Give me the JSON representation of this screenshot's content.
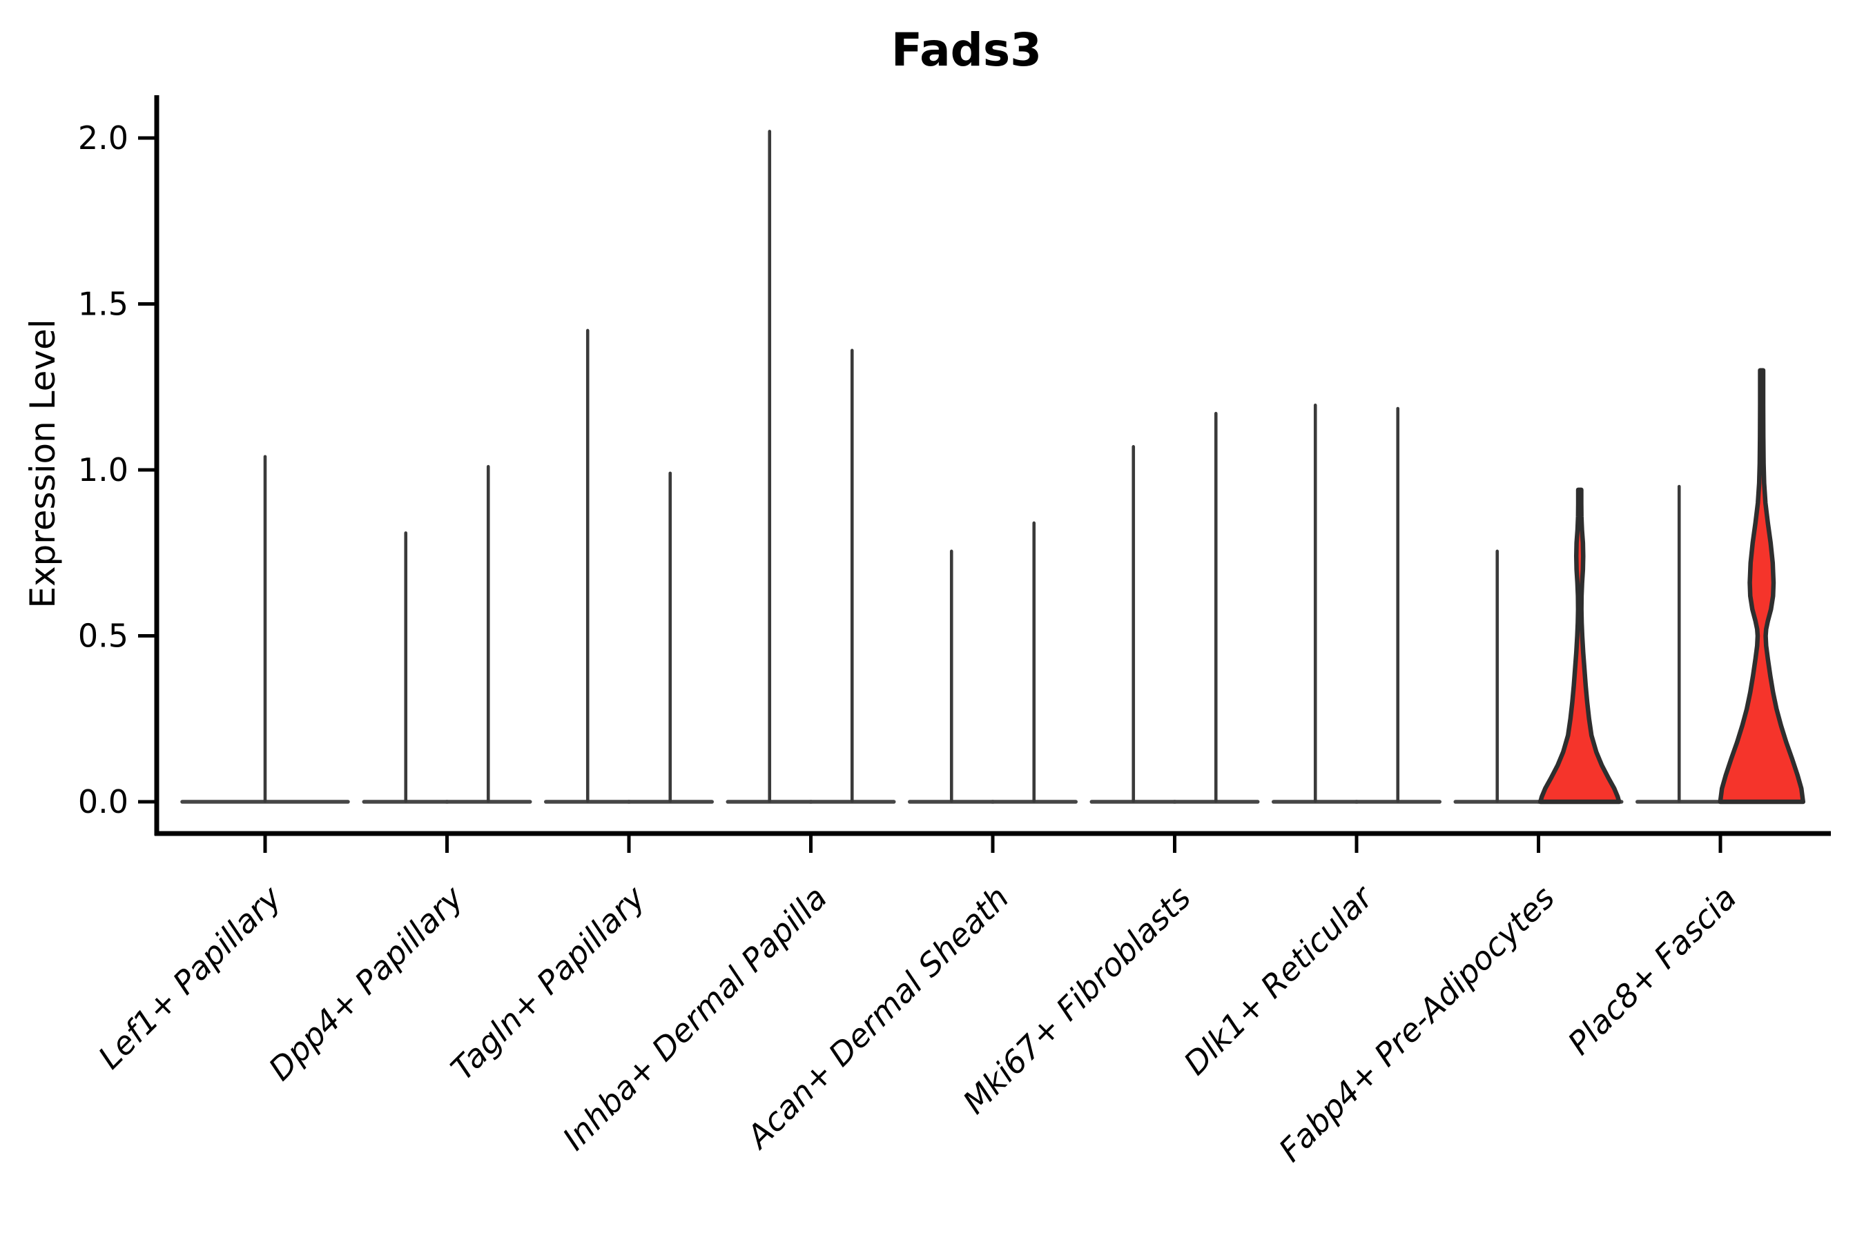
{
  "title": "Fads3",
  "ylabel": "Expression Level",
  "colors": {
    "violin_fill": "#f5342b",
    "violin_stroke": "#2e2e2e",
    "spike_line": "#3a3a3a",
    "base_line": "#464646",
    "axis": "#000000",
    "background": "#ffffff"
  },
  "chart_data": {
    "type": "violin",
    "title": "Fads3",
    "xlabel": "",
    "ylabel": "Expression Level",
    "ylim": [
      0,
      2.05
    ],
    "y_ticks": [
      "0.0",
      "0.5",
      "1.0",
      "1.5",
      "2.0"
    ],
    "grid": false,
    "legend": "none",
    "x_tick_rotation_deg": 45,
    "x_tick_style": "italic",
    "categories": [
      {
        "label": "Lef1+ Papillary",
        "violins": [
          {
            "pos": 0,
            "max": 1.04,
            "kind": "spike"
          }
        ]
      },
      {
        "label": "Dpp4+ Papillary",
        "violins": [
          {
            "pos": -1,
            "max": 0.81,
            "kind": "spike"
          },
          {
            "pos": 1,
            "max": 1.01,
            "kind": "spike"
          }
        ]
      },
      {
        "label": "Tagln+ Papillary",
        "violins": [
          {
            "pos": -1,
            "max": 1.42,
            "kind": "spike"
          },
          {
            "pos": 1,
            "max": 0.99,
            "kind": "spike"
          }
        ]
      },
      {
        "label": "Inhba+ Dermal Papilla",
        "violins": [
          {
            "pos": -1,
            "max": 2.02,
            "kind": "spike"
          },
          {
            "pos": 1,
            "max": 1.36,
            "kind": "spike"
          }
        ]
      },
      {
        "label": "Acan+ Dermal Sheath",
        "violins": [
          {
            "pos": -1,
            "max": 0.755,
            "kind": "spike"
          },
          {
            "pos": 1,
            "max": 0.84,
            "kind": "spike"
          }
        ]
      },
      {
        "label": "Mki67+ Fibroblasts",
        "violins": [
          {
            "pos": -1,
            "max": 1.07,
            "kind": "spike"
          },
          {
            "pos": 1,
            "max": 1.17,
            "kind": "spike"
          }
        ]
      },
      {
        "label": "Dlk1+ Reticular",
        "violins": [
          {
            "pos": -1,
            "max": 1.195,
            "kind": "spike"
          },
          {
            "pos": 1,
            "max": 1.185,
            "kind": "spike"
          }
        ]
      },
      {
        "label": "Fabp4+ Pre-Adipocytes",
        "violins": [
          {
            "pos": -1,
            "max": 0.755,
            "kind": "spike"
          },
          {
            "pos": 1,
            "max": 0.94,
            "kind": "filled",
            "profile": [
              [
                0.94,
                2.2
              ],
              [
                0.9,
                2.2
              ],
              [
                0.86,
                2.4
              ],
              [
                0.82,
                3.2
              ],
              [
                0.78,
                4.6
              ],
              [
                0.74,
                5.0
              ],
              [
                0.7,
                4.6
              ],
              [
                0.66,
                3.4
              ],
              [
                0.62,
                2.6
              ],
              [
                0.58,
                2.4
              ],
              [
                0.54,
                2.8
              ],
              [
                0.5,
                3.6
              ],
              [
                0.45,
                5.0
              ],
              [
                0.4,
                6.8
              ],
              [
                0.35,
                8.6
              ],
              [
                0.3,
                10.8
              ],
              [
                0.25,
                13.5
              ],
              [
                0.2,
                17.0
              ],
              [
                0.15,
                24.0
              ],
              [
                0.11,
                32.0
              ],
              [
                0.07,
                42.0
              ],
              [
                0.04,
                50.0
              ],
              [
                0.015,
                55.0
              ],
              [
                0.0,
                57.0
              ]
            ]
          }
        ]
      },
      {
        "label": "Plac8+ Fascia",
        "violins": [
          {
            "pos": -1,
            "max": 0.95,
            "kind": "spike"
          },
          {
            "pos": 1,
            "max": 1.3,
            "kind": "filled",
            "profile": [
              [
                1.3,
                2.2
              ],
              [
                1.2,
                2.2
              ],
              [
                1.1,
                2.4
              ],
              [
                1.02,
                2.8
              ],
              [
                0.96,
                3.6
              ],
              [
                0.9,
                5.5
              ],
              [
                0.84,
                9.0
              ],
              [
                0.78,
                13.0
              ],
              [
                0.72,
                16.0
              ],
              [
                0.66,
                17.2
              ],
              [
                0.62,
                16.5
              ],
              [
                0.58,
                13.5
              ],
              [
                0.545,
                9.0
              ],
              [
                0.52,
                6.5
              ],
              [
                0.5,
                5.8
              ],
              [
                0.47,
                6.5
              ],
              [
                0.43,
                9.0
              ],
              [
                0.38,
                12.5
              ],
              [
                0.33,
                16.5
              ],
              [
                0.28,
                21.5
              ],
              [
                0.23,
                28.0
              ],
              [
                0.18,
                35.5
              ],
              [
                0.13,
                44.0
              ],
              [
                0.08,
                52.0
              ],
              [
                0.04,
                57.5
              ],
              [
                0.0,
                60.0
              ]
            ]
          }
        ]
      }
    ]
  }
}
